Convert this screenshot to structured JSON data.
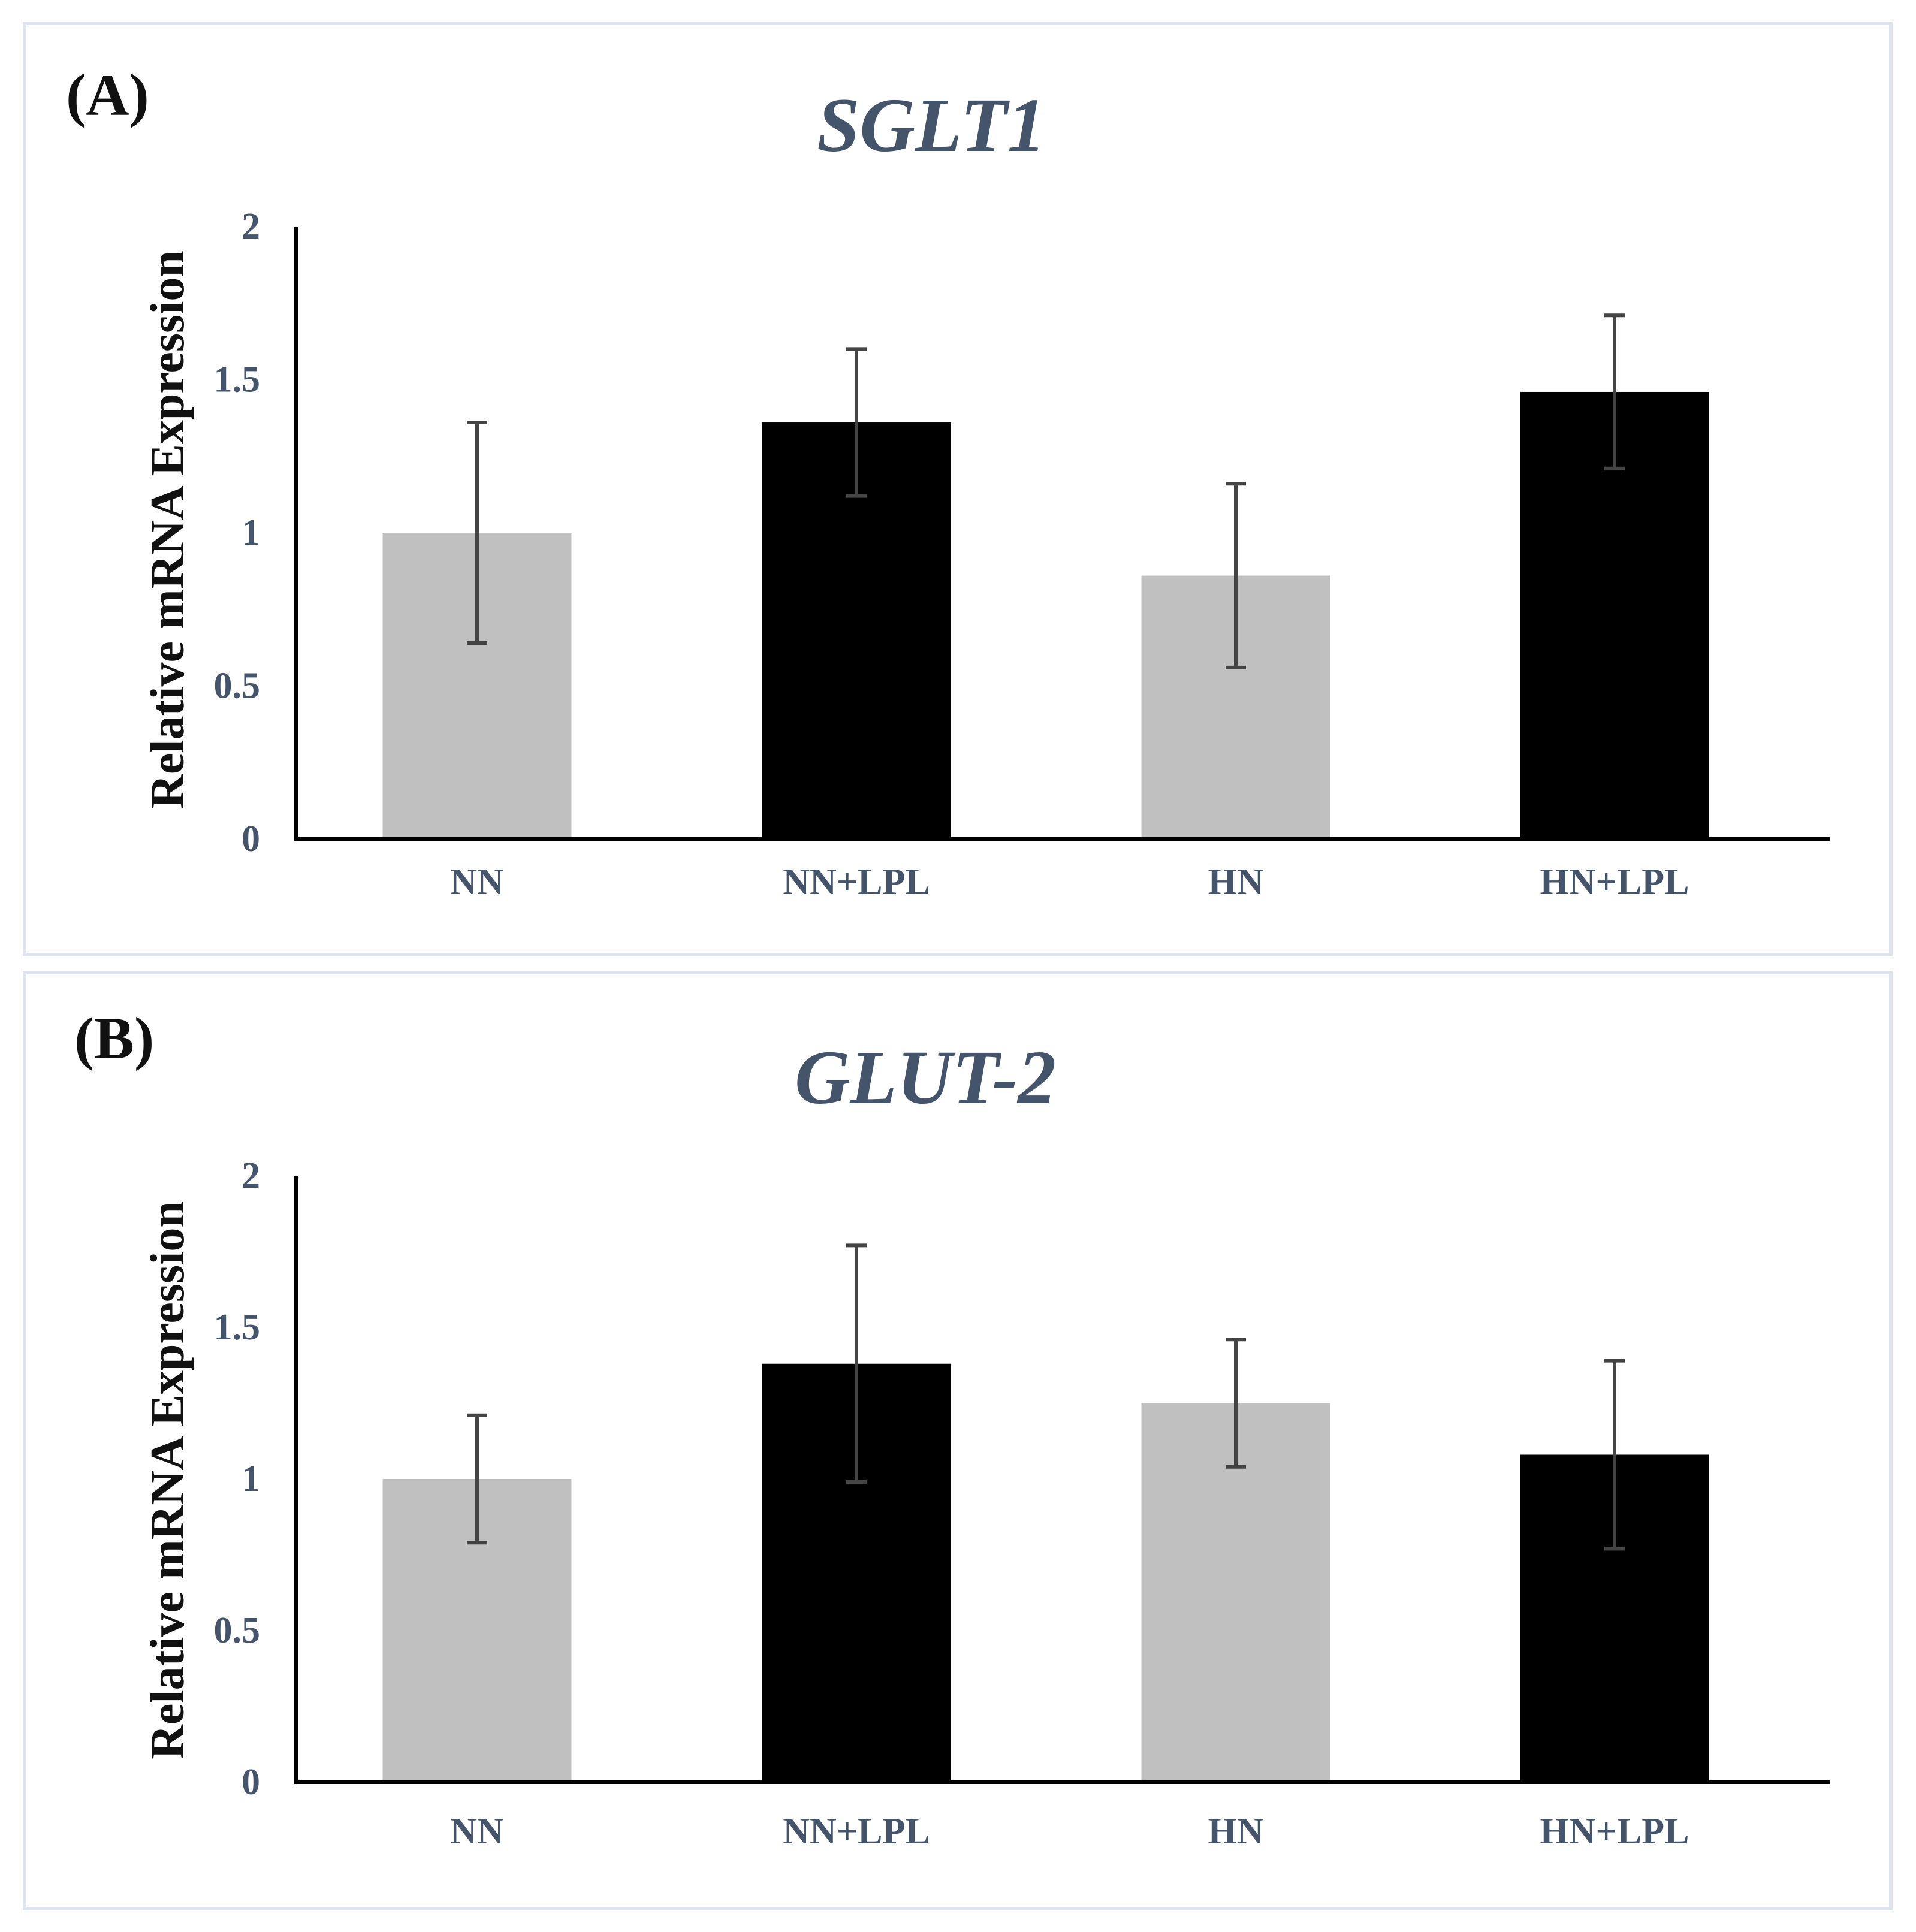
{
  "figure": {
    "panels": [
      {
        "letter": "(A)"
      },
      {
        "letter": "(B)"
      }
    ]
  },
  "colors": {
    "light_bar": "#c0c0c0",
    "dark_bar": "#000000",
    "text_accent": "#44546a",
    "error_bar": "#444444"
  },
  "chart_data": [
    {
      "type": "bar",
      "title": "SGLT1",
      "xlabel": "",
      "ylabel": "Relative mRNA Expression",
      "ylim": [
        0,
        2
      ],
      "yticks": [
        "0",
        "0.5",
        "1",
        "1.5",
        "2"
      ],
      "ytick_values": [
        0,
        0.5,
        1,
        1.5,
        2
      ],
      "categories": [
        "NN",
        "NN+LPL",
        "HN",
        "HN+LPL"
      ],
      "values": [
        1.0,
        1.36,
        0.86,
        1.46
      ],
      "errors": [
        0.36,
        0.24,
        0.3,
        0.25
      ],
      "bar_colors": [
        "#c0c0c0",
        "#000000",
        "#c0c0c0",
        "#000000"
      ],
      "grid": false
    },
    {
      "type": "bar",
      "title": "GLUT-2",
      "xlabel": "",
      "ylabel": "Relative mRNA Expression",
      "ylim": [
        0,
        2
      ],
      "yticks": [
        "0",
        "0.5",
        "1",
        "1.5",
        "2"
      ],
      "ytick_values": [
        0,
        0.5,
        1,
        1.5,
        2
      ],
      "categories": [
        "NN",
        "NN+LPL",
        "HN",
        "HN+LPL"
      ],
      "values": [
        1.0,
        1.38,
        1.25,
        1.08
      ],
      "errors": [
        0.21,
        0.39,
        0.21,
        0.31
      ],
      "bar_colors": [
        "#c0c0c0",
        "#000000",
        "#c0c0c0",
        "#000000"
      ],
      "grid": false
    }
  ]
}
